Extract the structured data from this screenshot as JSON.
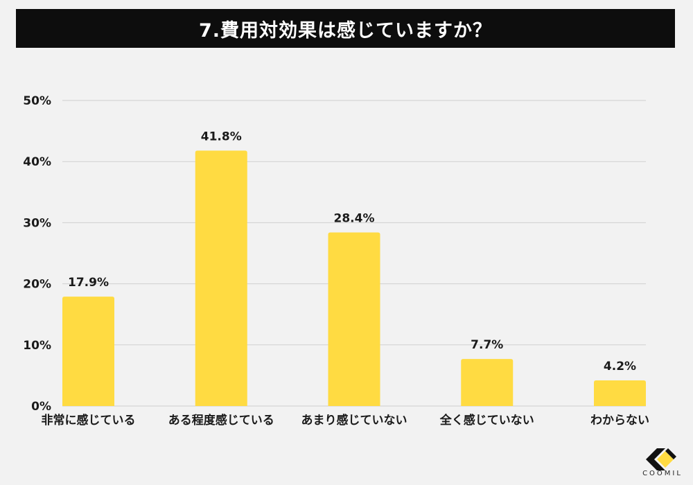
{
  "title": "7.費用対効果は感じていますか？",
  "brand": "COOMIL",
  "colors": {
    "bar": "#ffdb42",
    "grid": "#cfcfcf",
    "title_bg": "#0d0d0d"
  },
  "chart_data": {
    "type": "bar",
    "categories": [
      "非常に感じている",
      "ある程度感じている",
      "あまり感じていない",
      "全く感じていない",
      "わからない"
    ],
    "values": [
      17.9,
      41.8,
      28.4,
      7.7,
      4.2
    ],
    "value_labels": [
      "17.9%",
      "41.8%",
      "28.4%",
      "7.7%",
      "4.2%"
    ],
    "yticks": [
      0,
      10,
      20,
      30,
      40,
      50
    ],
    "ytick_labels": [
      "0%",
      "10%",
      "20%",
      "30%",
      "40%",
      "50%"
    ],
    "ylim": [
      0,
      50
    ],
    "grid": true,
    "legend": "none"
  }
}
